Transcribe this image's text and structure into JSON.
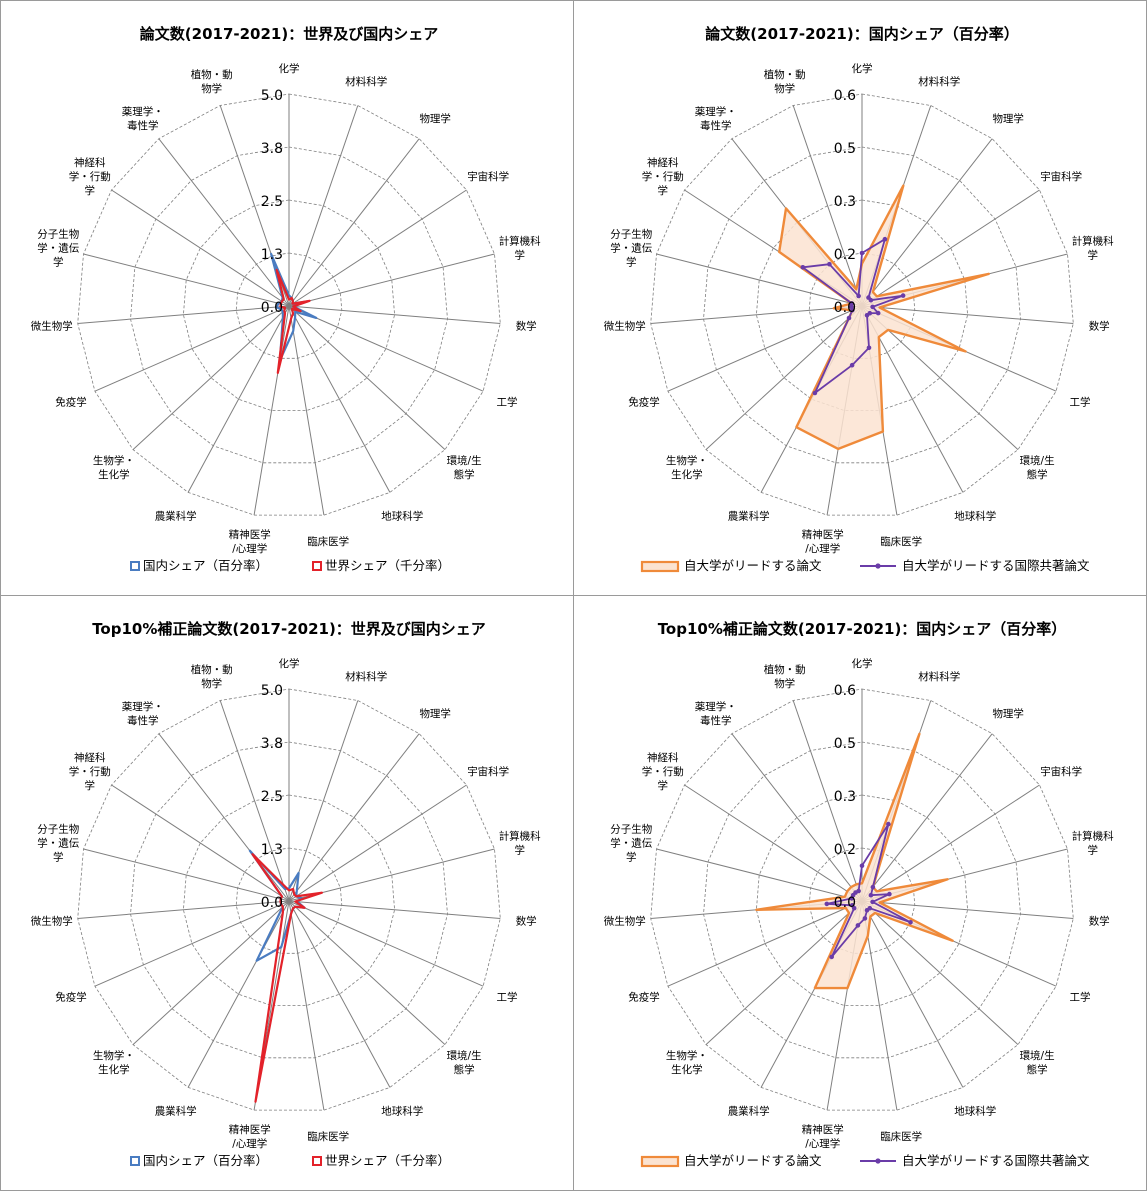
{
  "categories": [
    "化学",
    "材料科学",
    "物理学",
    "宇宙科学",
    "計算機科学",
    "数学",
    "工学",
    "環境/生態学",
    "地球科学",
    "臨床医学",
    "精神医学/心理学",
    "農業科学",
    "生物学・生化学",
    "免疫学",
    "微生物学",
    "分子生物学・遺伝学",
    "神経科学・行動学",
    "薬理学・毒性学",
    "植物・動物学"
  ],
  "category_lines": [
    [
      "化学"
    ],
    [
      "材料科学"
    ],
    [
      "物理学"
    ],
    [
      "宇宙科学"
    ],
    [
      "計算機科",
      "学"
    ],
    [
      "数学"
    ],
    [
      "工学"
    ],
    [
      "環境/生",
      "態学"
    ],
    [
      "地球科学"
    ],
    [
      "臨床医学"
    ],
    [
      "精神医学",
      "/心理学"
    ],
    [
      "農業科学"
    ],
    [
      "生物学・",
      "生化学"
    ],
    [
      "免疫学"
    ],
    [
      "微生物学"
    ],
    [
      "分子生物",
      "学・遺伝",
      "学"
    ],
    [
      "神経科",
      "学・行動",
      "学"
    ],
    [
      "薬理学・",
      "毒性学"
    ],
    [
      "植物・動",
      "物学"
    ]
  ],
  "colors": {
    "domestic": "#4a7cc1",
    "world": "#e3222a",
    "lead": "#ef8a3a",
    "lead_fill": "#fbe3d1",
    "intl": "#6a3ca8",
    "spoke": "#7f7f7f",
    "ring": "#7f7f7f"
  },
  "chart_data": [
    {
      "type": "radar",
      "title": "論文数(2017-2021)：世界及び国内シェア",
      "ticks": [
        "0.0",
        "1.3",
        "2.5",
        "3.8",
        "5.0"
      ],
      "rmax": 5.0,
      "series": [
        {
          "name": "国内シェア（百分率）",
          "style": "domestic",
          "values": [
            0.25,
            0.2,
            0.15,
            0.1,
            0.45,
            0.1,
            0.7,
            0.2,
            0.3,
            0.6,
            1.3,
            0.3,
            0.2,
            0.2,
            0.3,
            0.25,
            0.2,
            0.25,
            1.3
          ]
        },
        {
          "name": "世界シェア（千分率）",
          "style": "world",
          "values": [
            0.15,
            0.2,
            0.15,
            0.1,
            0.5,
            0.1,
            0.3,
            0.1,
            0.2,
            0.3,
            1.6,
            0.2,
            0.15,
            0.1,
            0.2,
            0.2,
            0.2,
            0.2,
            0.9
          ]
        }
      ],
      "legend": [
        {
          "label": "国内シェア（百分率）",
          "style": "domestic"
        },
        {
          "label": "世界シェア（千分率）",
          "style": "world"
        }
      ]
    },
    {
      "type": "radar",
      "title": "論文数(2017-2021)：国内シェア（百分率）",
      "ticks": [
        "0.0",
        "0.2",
        "0.3",
        "0.5",
        "0.6"
      ],
      "rmax": 0.6,
      "series": [
        {
          "name": "自大学がリードする論文",
          "style": "lead",
          "values": [
            0.12,
            0.36,
            0.05,
            0.05,
            0.37,
            0.05,
            0.32,
            0.1,
            0.1,
            0.36,
            0.41,
            0.39,
            0.05,
            0.03,
            0.08,
            0.03,
            0.28,
            0.35,
            0.05
          ]
        },
        {
          "name": "自大学がリードする国際共著論文",
          "style": "intl",
          "values": [
            0.15,
            0.2,
            0.03,
            0.03,
            0.12,
            0.03,
            0.05,
            0.03,
            0.03,
            0.12,
            0.17,
            0.28,
            0.05,
            0.03,
            0.03,
            0.03,
            0.2,
            0.15,
            0.03
          ]
        }
      ],
      "legend": [
        {
          "label": "自大学がリードする論文",
          "style": "lead"
        },
        {
          "label": "自大学がリードする国際共著論文",
          "style": "intl"
        }
      ]
    },
    {
      "type": "radar",
      "title": "Top10%補正論文数(2017-2021)：世界及び国内シェア",
      "ticks": [
        "0.0",
        "1.3",
        "2.5",
        "3.8",
        "5.0"
      ],
      "rmax": 5.0,
      "series": [
        {
          "name": "国内シェア（百分率）",
          "style": "domestic",
          "values": [
            0.3,
            0.7,
            0.3,
            0.2,
            0.3,
            0.2,
            0.4,
            0.2,
            0.2,
            0.3,
            1.1,
            1.6,
            0.2,
            0.2,
            0.2,
            0.2,
            0.2,
            1.5,
            0.3
          ]
        },
        {
          "name": "世界シェア（千分率）",
          "style": "world",
          "values": [
            0.25,
            0.3,
            0.2,
            0.2,
            0.8,
            0.15,
            0.4,
            0.2,
            0.2,
            0.3,
            4.8,
            0.3,
            0.2,
            0.2,
            0.2,
            0.2,
            0.2,
            1.4,
            0.4
          ]
        }
      ],
      "legend": [
        {
          "label": "国内シェア（百分率）",
          "style": "domestic"
        },
        {
          "label": "世界シェア（千分率）",
          "style": "world"
        }
      ]
    },
    {
      "type": "radar",
      "title": "Top10%補正論文数(2017-2021)：国内シェア（百分率）",
      "ticks": [
        "0.0",
        "0.2",
        "0.3",
        "0.5",
        "0.6"
      ],
      "rmax": 0.6,
      "series": [
        {
          "name": "自大学がリードする論文",
          "style": "lead",
          "values": [
            0.05,
            0.5,
            0.05,
            0.05,
            0.25,
            0.05,
            0.28,
            0.05,
            0.05,
            0.1,
            0.25,
            0.28,
            0.05,
            0.05,
            0.3,
            0.05,
            0.05,
            0.05,
            0.05
          ]
        },
        {
          "name": "自大学がリードする国際共著論文",
          "style": "intl",
          "values": [
            0.1,
            0.23,
            0.05,
            0.03,
            0.08,
            0.03,
            0.15,
            0.03,
            0.03,
            0.05,
            0.07,
            0.18,
            0.03,
            0.03,
            0.1,
            0.03,
            0.03,
            0.03,
            0.03
          ]
        }
      ],
      "legend": [
        {
          "label": "自大学がリードする論文",
          "style": "lead"
        },
        {
          "label": "自大学がリードする国際共著論文",
          "style": "intl"
        }
      ]
    }
  ]
}
